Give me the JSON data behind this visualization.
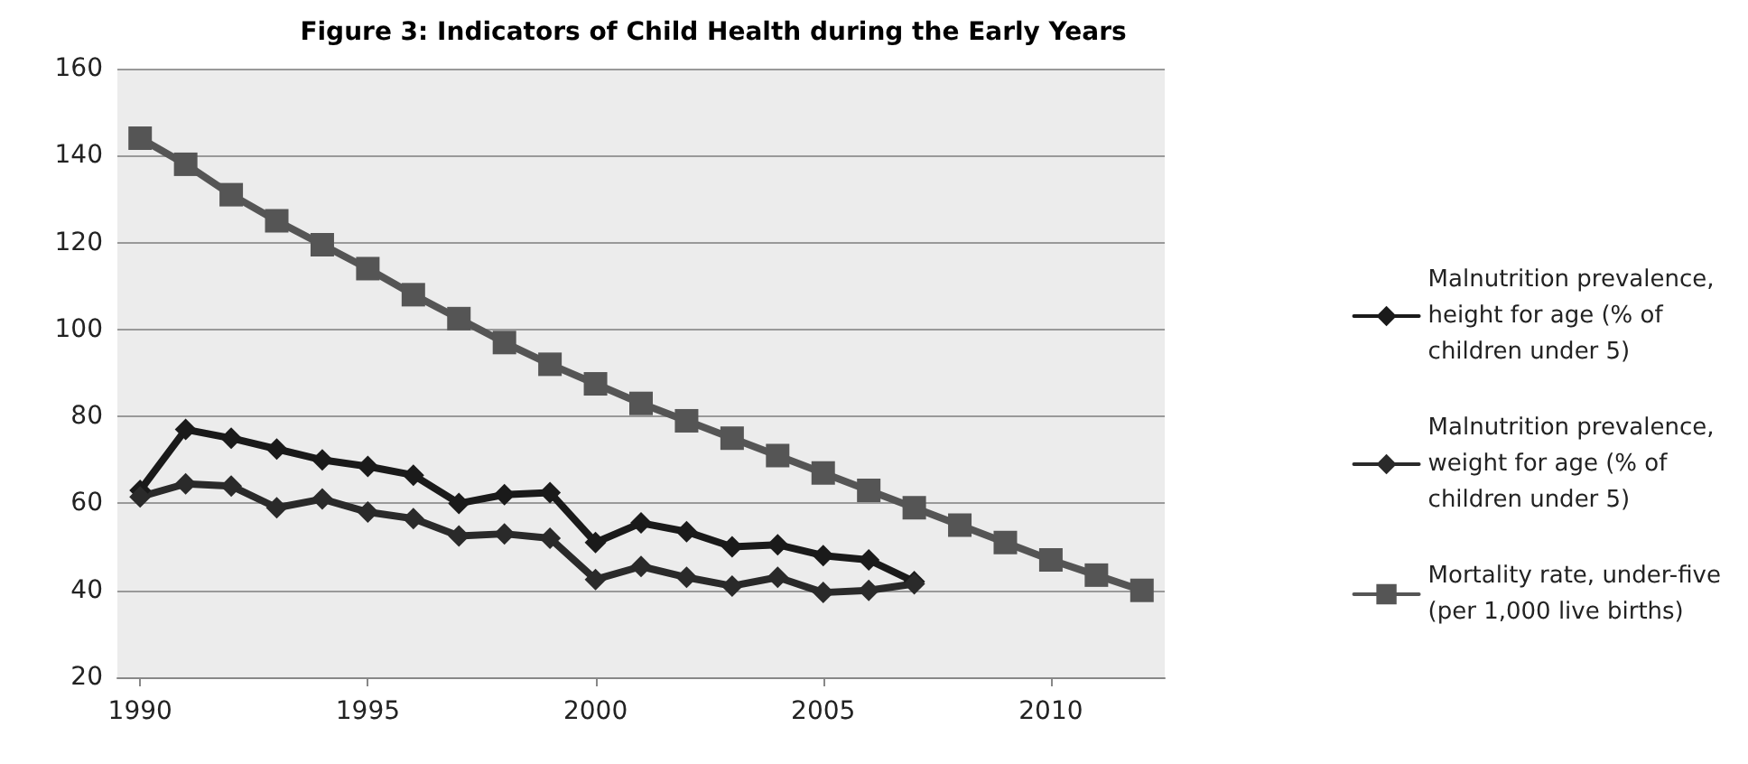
{
  "chart_data": {
    "type": "line",
    "title": "Figure 3: Indicators of Child Health during the Early Years",
    "x": [
      1990,
      1991,
      1992,
      1993,
      1994,
      1995,
      1996,
      1997,
      1998,
      1999,
      2000,
      2001,
      2002,
      2003,
      2004,
      2005,
      2006,
      2007,
      2008,
      2009,
      2010,
      2011,
      2012
    ],
    "series": [
      {
        "name": "Malnutrition prevalence, height for age (% of children under 5)",
        "color": "#1a1a1a",
        "marker": "diamond",
        "values": [
          63,
          77,
          75,
          72.5,
          70,
          68.5,
          66.5,
          60,
          62,
          62.5,
          51,
          55.5,
          53.5,
          50,
          50.5,
          48,
          47,
          42,
          null,
          null,
          null,
          null,
          null
        ]
      },
      {
        "name": "Malnutrition prevalence, weight for age (% of children under 5)",
        "color": "#2a2a2a",
        "marker": "diamond",
        "values": [
          61.5,
          64.5,
          64,
          59,
          61,
          58,
          56.5,
          52.5,
          53,
          52,
          42.5,
          45.5,
          43,
          41,
          43,
          39.5,
          40,
          41.5,
          null,
          null,
          null,
          null,
          null
        ]
      },
      {
        "name": "Mortality rate, under-five (per 1,000 live births)",
        "color": "#555555",
        "marker": "square",
        "values": [
          144,
          138,
          131,
          125,
          119.5,
          114,
          108,
          102.5,
          97,
          92,
          87.5,
          83,
          79,
          75,
          71,
          67,
          63,
          59,
          55,
          51,
          47,
          43.5,
          40
        ]
      }
    ],
    "xlim": [
      1989.5,
      2012.5
    ],
    "xticks": [
      1990,
      1995,
      2000,
      2005,
      2010
    ],
    "ylim": [
      20,
      160
    ],
    "yticks": [
      20,
      40,
      60,
      80,
      100,
      120,
      140,
      160
    ],
    "grid": "y",
    "legend": "right",
    "line_style": "solid"
  }
}
